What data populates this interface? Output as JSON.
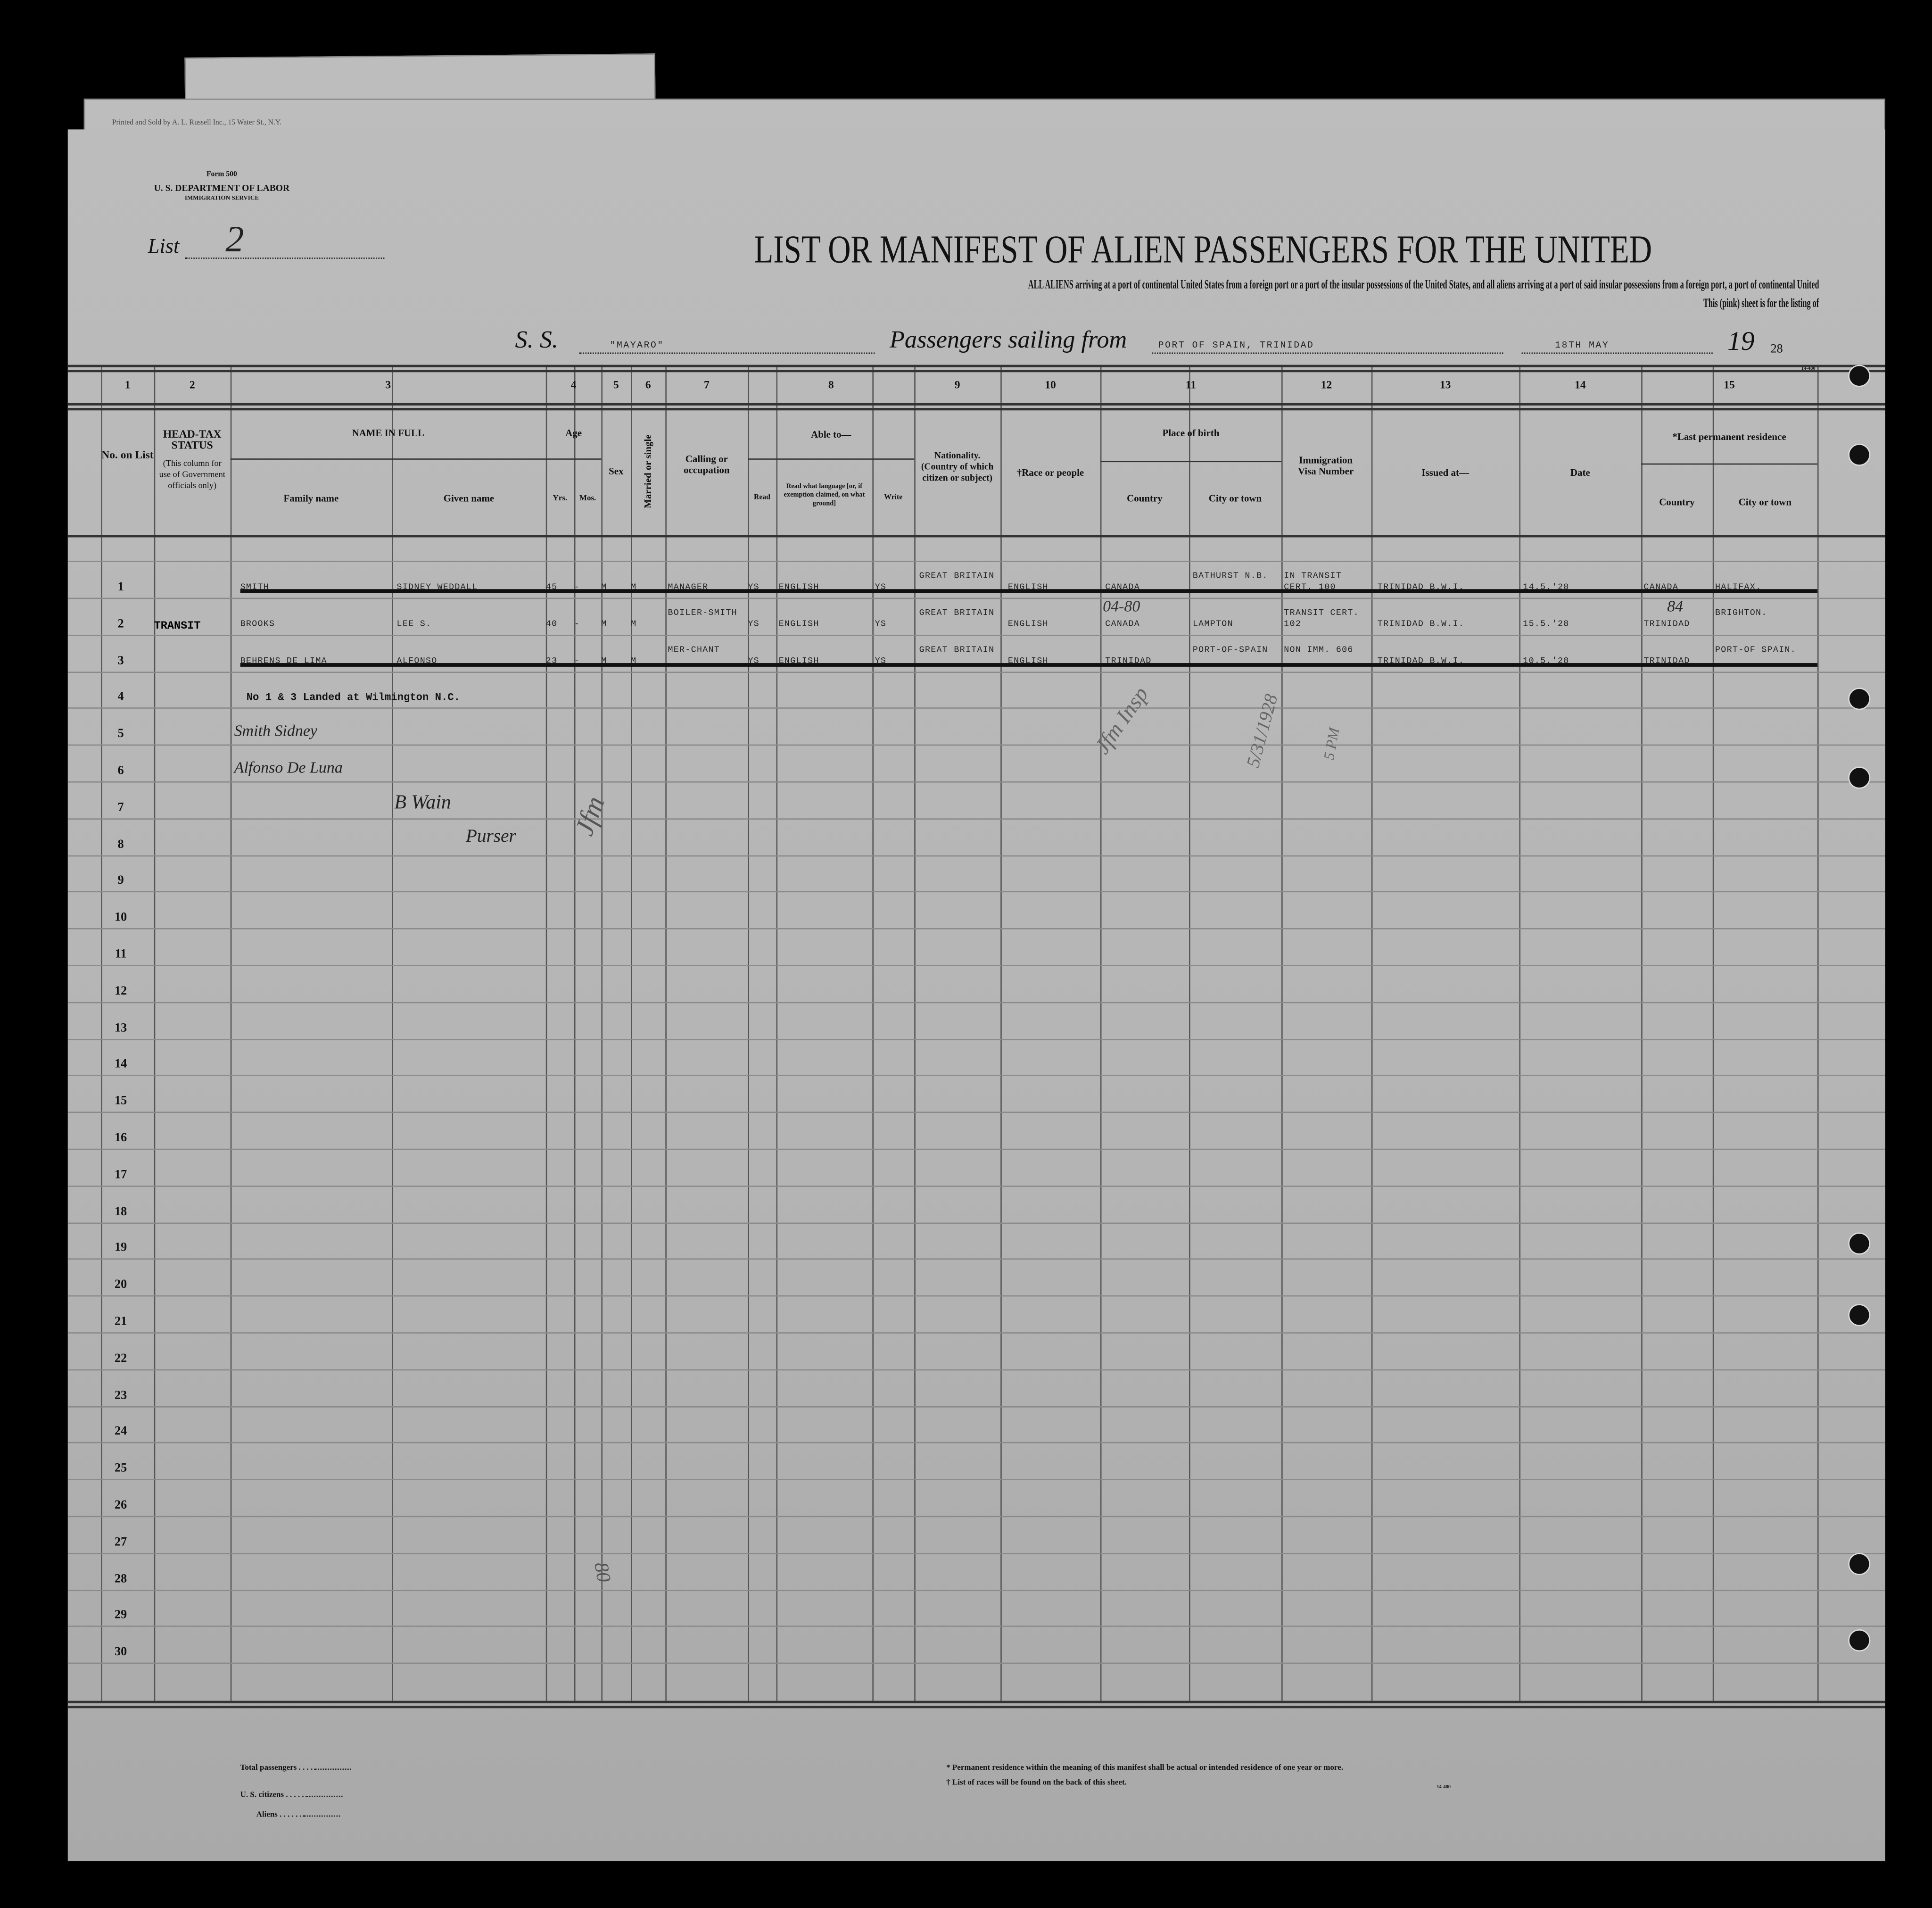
{
  "printer_line": "Printed and Sold by A. L. Russell Inc., 15 Water St., N.Y.",
  "form": {
    "number": "Form 500",
    "department": "U. S. DEPARTMENT OF LABOR",
    "service": "IMMIGRATION SERVICE"
  },
  "list": {
    "label": "List",
    "value": "2"
  },
  "title": "LIST OR MANIFEST OF ALIEN PASSENGERS FOR THE UNITED",
  "subtitle_line1": "ALL ALIENS arriving at a port of continental United States from a foreign port or a port of the insular possessions of the United States, and all aliens arriving at a port of said insular possessions from a foreign port, a port of continental United",
  "subtitle_line2": "This (pink) sheet is for the listing of",
  "voyage": {
    "ss_label": "S. S.",
    "ship": "\"MAYARO\"",
    "sailing_label": "Passengers sailing from",
    "port": "PORT OF SPAIN, TRINIDAD",
    "date": "18TH MAY",
    "year_prefix": "19",
    "year_suffix": "28"
  },
  "form_code": "14-480",
  "column_numbers": [
    "1",
    "2",
    "3",
    "4",
    "5",
    "6",
    "7",
    "8",
    "9",
    "10",
    "11",
    "12",
    "13",
    "14",
    "15"
  ],
  "headers": {
    "no_on_list": "No. on List",
    "head_tax": "HEAD-TAX STATUS",
    "head_tax_note": "(This column for use of Government officials only)",
    "name_in_full": "NAME IN FULL",
    "family_name": "Family name",
    "given_name": "Given name",
    "age": "Age",
    "yrs": "Yrs.",
    "mos": "Mos.",
    "sex": "Sex",
    "married": "Married or single",
    "calling": "Calling or occupation",
    "able_to": "Able to—",
    "read": "Read",
    "read_language": "Read what language [or, if exemption claimed, on what ground]",
    "write": "Write",
    "nationality": "Nationality. (Country of which citizen or subject)",
    "race": "†Race or people",
    "place_of_birth": "Place of birth",
    "country": "Country",
    "city": "City or town",
    "visa": "Immigration Visa Number",
    "issued_at": "Issued at—",
    "date": "Date",
    "last_residence": "*Last permanent residence",
    "lr_country": "Country",
    "lr_city": "City or town"
  },
  "row_numbers": [
    "1",
    "2",
    "3",
    "4",
    "5",
    "6",
    "7",
    "8",
    "9",
    "10",
    "11",
    "12",
    "13",
    "14",
    "15",
    "16",
    "17",
    "18",
    "19",
    "20",
    "21",
    "22",
    "23",
    "24",
    "25",
    "26",
    "27",
    "28",
    "29",
    "30"
  ],
  "passengers": [
    {
      "no": "1",
      "head_tax": "",
      "family": "Smith",
      "given": "Sidney Weddall",
      "yrs": "45",
      "mos": "-",
      "sex": "M",
      "married": "M",
      "calling": "Manager",
      "read": "Ys",
      "language": "English",
      "write": "Ys",
      "nationality": "Great Britain",
      "race": "English",
      "birth_country": "Canada",
      "birth_city": "Bathurst N.B.",
      "visa": "In transit cert. 100",
      "issued_at": "Trinidad B.W.I.",
      "date": "14.5.'28",
      "lr_country": "Canada",
      "lr_city": "Halifax.",
      "struck": true
    },
    {
      "no": "2",
      "head_tax": "TRANSIT",
      "family": "Brooks",
      "given": "Lee S.",
      "yrs": "40",
      "mos": "-",
      "sex": "M",
      "married": "M",
      "calling": "Boiler-smith",
      "read": "Ys",
      "language": "English",
      "write": "Ys",
      "nationality": "Great Britain",
      "race": "English",
      "birth_country": "Canada",
      "birth_city": "Lampton",
      "visa": "transit cert. 102",
      "issued_at": "Trinidad B.W.I.",
      "date": "15.5.'28",
      "lr_country": "Trinidad",
      "lr_city": "Brighton.",
      "struck": false
    },
    {
      "no": "3",
      "head_tax": "",
      "family": "Behrens De Lima",
      "given": "Alfonso",
      "yrs": "23",
      "mos": "-",
      "sex": "M",
      "married": "M",
      "calling": "Mer-chant",
      "read": "Ys",
      "language": "English",
      "write": "Ys",
      "nationality": "Great Britain",
      "race": "English",
      "birth_country": "Trinidad",
      "birth_city": "Port-of-Spain",
      "visa": "Non Imm. 606",
      "issued_at": "Trinidad B.W.I.",
      "date": "10.5.'28",
      "lr_country": "Trinidad",
      "lr_city": "Port-of Spain.",
      "struck": true
    }
  ],
  "typed_note": "No 1 & 3 Landed at Wilmington N.C.",
  "handwritten": {
    "name1": "Smith Sidney",
    "name2": "Alfonso De Luna",
    "signature": "B Wain",
    "title": "Purser",
    "initials": "Jfm",
    "code1": "04-80",
    "code2": "84",
    "date_note": "5/31/1928",
    "time_note": "5 PM",
    "inspector": "Jfm Insp",
    "page_mark": "80"
  },
  "footer": {
    "total_passengers": "Total passengers",
    "us_citizens": "U. S. citizens",
    "aliens": "Aliens",
    "note1": "* Permanent residence within the meaning of this manifest shall be actual or intended residence of one year or more.",
    "note2": "† List of races will be found on the back of this sheet.",
    "code": "14-480"
  }
}
